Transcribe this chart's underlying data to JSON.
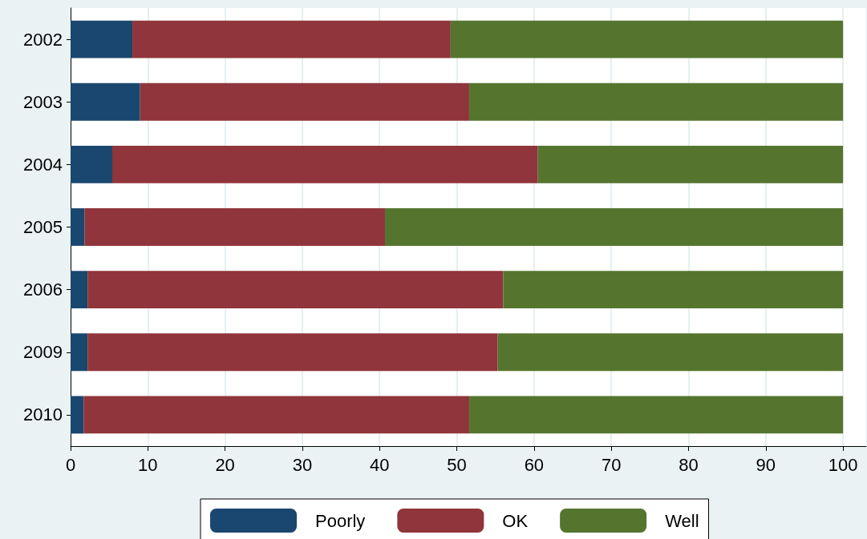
{
  "chart_data": {
    "type": "bar",
    "orientation": "horizontal",
    "stacked": true,
    "categories": [
      "2002",
      "2003",
      "2004",
      "2005",
      "2006",
      "2009",
      "2010"
    ],
    "series": [
      {
        "name": "Poorly",
        "color": "#1a476f",
        "values": [
          8.0,
          9.0,
          5.4,
          1.8,
          2.2,
          2.2,
          1.7
        ]
      },
      {
        "name": "OK",
        "color": "#90353b",
        "values": [
          41.2,
          42.6,
          55.1,
          38.9,
          53.8,
          53.1,
          49.9
        ]
      },
      {
        "name": "Well",
        "color": "#55752f",
        "values": [
          50.8,
          48.4,
          39.5,
          59.3,
          44.0,
          44.7,
          48.4
        ]
      }
    ],
    "xlim": [
      0,
      103
    ],
    "xticks": [
      0,
      10,
      20,
      30,
      40,
      50,
      60,
      70,
      80,
      90,
      100
    ],
    "grid": "x",
    "legend": "bottom"
  }
}
